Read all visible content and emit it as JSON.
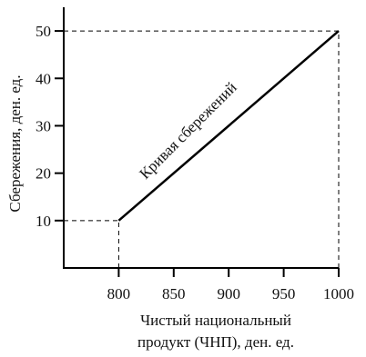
{
  "chart_data": {
    "type": "line",
    "title": "",
    "xlabel_lines": [
      "Чистый национальный",
      "продукт (ЧНП), ден. ед."
    ],
    "ylabel": "Сбережения, ден. ед.",
    "x_ticks": [
      800,
      850,
      900,
      950,
      1000
    ],
    "y_ticks": [
      10,
      20,
      30,
      40,
      50
    ],
    "xlim": [
      750,
      1000
    ],
    "ylim": [
      0,
      55
    ],
    "series": [
      {
        "x": [
          800,
          1000
        ],
        "y": [
          10,
          50
        ],
        "color": "#000000"
      }
    ],
    "annotations": [
      {
        "text": "Кривая сбережений"
      }
    ],
    "reference_lines": [
      {
        "from": [
          750,
          10
        ],
        "to": [
          800,
          10
        ],
        "style": "dashed"
      },
      {
        "from": [
          800,
          0
        ],
        "to": [
          800,
          10
        ],
        "style": "dashed"
      },
      {
        "from": [
          750,
          50
        ],
        "to": [
          1000,
          50
        ],
        "style": "dashed"
      },
      {
        "from": [
          1000,
          0
        ],
        "to": [
          1000,
          50
        ],
        "style": "dashed"
      }
    ],
    "grid": false,
    "legend": "none"
  }
}
